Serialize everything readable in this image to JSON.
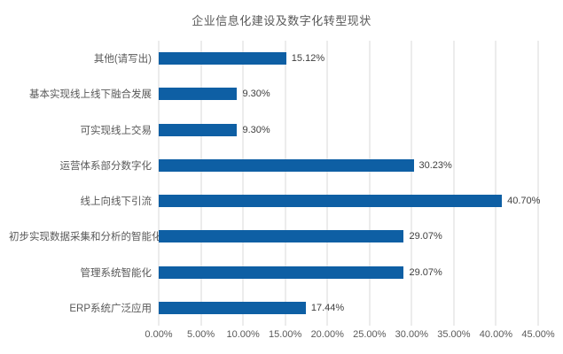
{
  "title": "企业信息化建设及数字化转型现状",
  "colors": {
    "bar": "#0e5fa4",
    "gridline": "#d9d9d9",
    "title_text": "#595959",
    "axis_text": "#595959",
    "value_text": "#404040",
    "background": "#ffffff"
  },
  "chart_data": {
    "type": "bar",
    "orientation": "horizontal",
    "title": "企业信息化建设及数字化转型现状",
    "categories": [
      "其他(请写出)",
      "基本实现线上线下融合发展",
      "可实现线上交易",
      "运营体系部分数字化",
      "线上向线下引流",
      "初步实现数据采集和分析的智能化",
      "管理系统智能化",
      "ERP系统广泛应用"
    ],
    "values": [
      15.12,
      9.3,
      9.3,
      30.23,
      40.7,
      29.07,
      29.07,
      17.44
    ],
    "value_labels": [
      "15.12%",
      "9.30%",
      "9.30%",
      "30.23%",
      "40.70%",
      "29.07%",
      "29.07%",
      "17.44%"
    ],
    "x_ticks": [
      "0.00%",
      "5.00%",
      "10.00%",
      "15.00%",
      "20.00%",
      "25.00%",
      "30.00%",
      "35.00%",
      "40.00%",
      "45.00%"
    ],
    "xlim": [
      0,
      45
    ],
    "xlabel": "",
    "ylabel": "",
    "grid": true,
    "legend": false,
    "data_labels": true
  }
}
